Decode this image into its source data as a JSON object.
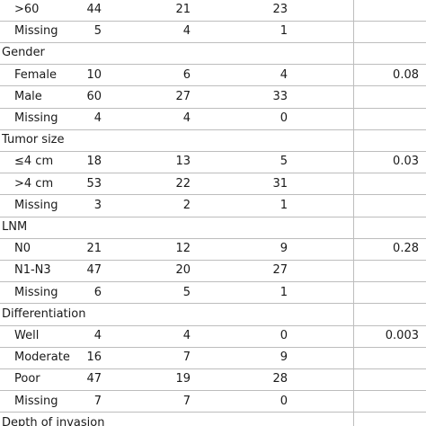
{
  "table": {
    "rows": [
      {
        "label": ">60",
        "counts": [
          44,
          21,
          23
        ]
      },
      {
        "label": "Missing",
        "counts": [
          5,
          4,
          1
        ]
      },
      {
        "label": "Gender"
      },
      {
        "label": "Female",
        "counts": [
          10,
          6,
          4
        ],
        "p": 0.08
      },
      {
        "label": "Male",
        "counts": [
          60,
          27,
          33
        ]
      },
      {
        "label": "Missing",
        "counts": [
          4,
          4,
          0
        ]
      },
      {
        "label": "Tumor size"
      },
      {
        "label": "≤4 cm",
        "counts": [
          18,
          13,
          5
        ],
        "p": 0.03
      },
      {
        "label": ">4 cm",
        "counts": [
          53,
          22,
          31
        ]
      },
      {
        "label": "Missing",
        "counts": [
          3,
          2,
          1
        ]
      },
      {
        "label": "LNM"
      },
      {
        "label": "N0",
        "counts": [
          21,
          12,
          9
        ],
        "p": 0.28
      },
      {
        "label": "N1-N3",
        "counts": [
          47,
          20,
          27
        ]
      },
      {
        "label": "Missing",
        "counts": [
          6,
          5,
          1
        ]
      },
      {
        "label": "Differentiation"
      },
      {
        "label": "Well",
        "counts": [
          4,
          4,
          0
        ],
        "p": 0.003
      },
      {
        "label": "Moderate",
        "counts": [
          16,
          7,
          9
        ]
      },
      {
        "label": "Poor",
        "counts": [
          47,
          19,
          28
        ]
      },
      {
        "label": "Missing",
        "counts": [
          7,
          7,
          0
        ]
      },
      {
        "label": "Depth of invasion"
      }
    ]
  }
}
